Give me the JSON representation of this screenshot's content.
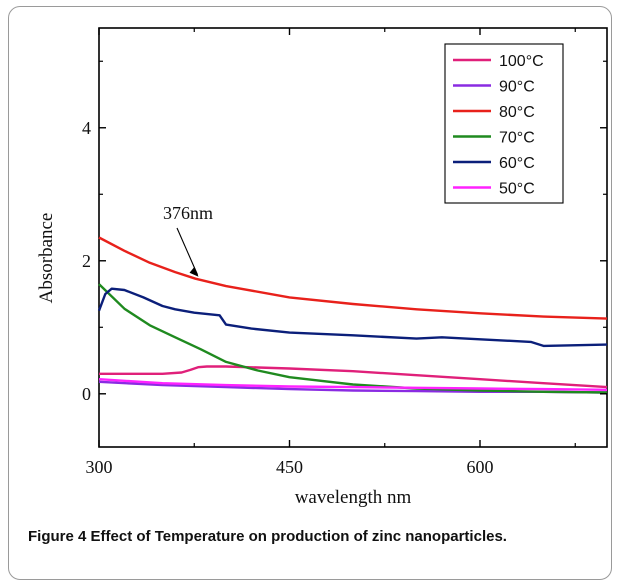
{
  "chart_data": {
    "type": "line",
    "title": "",
    "xlabel": "wavelength nm",
    "ylabel": "Absorbance",
    "xlim": [
      300,
      700
    ],
    "ylim": [
      -0.8,
      5.5
    ],
    "xticks": [
      300,
      450,
      600
    ],
    "yticks": [
      0,
      2,
      4
    ],
    "grid": false,
    "legend_position": "top-right",
    "annotation": {
      "text": "376nm",
      "x": 376,
      "y": 1.73
    },
    "series": [
      {
        "name": "100°C",
        "color": "#e0207a",
        "x": [
          300,
          350,
          365,
          372,
          378,
          385,
          400,
          450,
          500,
          550,
          600,
          650,
          700
        ],
        "y": [
          0.3,
          0.3,
          0.32,
          0.36,
          0.4,
          0.41,
          0.41,
          0.38,
          0.34,
          0.28,
          0.22,
          0.16,
          0.1
        ]
      },
      {
        "name": "90°C",
        "color": "#8a2be2",
        "x": [
          300,
          350,
          400,
          450,
          500,
          550,
          600,
          650,
          700
        ],
        "y": [
          0.18,
          0.13,
          0.1,
          0.07,
          0.05,
          0.04,
          0.03,
          0.03,
          0.02
        ]
      },
      {
        "name": "80°C",
        "color": "#e8211b",
        "x": [
          300,
          320,
          340,
          360,
          376,
          400,
          450,
          500,
          550,
          600,
          650,
          700
        ],
        "y": [
          2.35,
          2.15,
          1.97,
          1.83,
          1.73,
          1.62,
          1.45,
          1.35,
          1.27,
          1.21,
          1.16,
          1.13
        ]
      },
      {
        "name": "70°C",
        "color": "#1f8a1f",
        "x": [
          300,
          320,
          340,
          360,
          380,
          400,
          425,
          450,
          500,
          550,
          600,
          650,
          700
        ],
        "y": [
          1.65,
          1.28,
          1.03,
          0.85,
          0.67,
          0.48,
          0.35,
          0.25,
          0.14,
          0.08,
          0.05,
          0.03,
          0.02
        ]
      },
      {
        "name": "60°C",
        "color": "#0b1f7a",
        "x": [
          300,
          305,
          310,
          320,
          335,
          350,
          360,
          375,
          395,
          400,
          420,
          450,
          500,
          550,
          570,
          600,
          640,
          650,
          700
        ],
        "y": [
          1.25,
          1.5,
          1.58,
          1.56,
          1.45,
          1.32,
          1.27,
          1.22,
          1.18,
          1.04,
          0.98,
          0.92,
          0.88,
          0.83,
          0.85,
          0.82,
          0.78,
          0.72,
          0.74
        ]
      },
      {
        "name": "50°C",
        "color": "#ff22ff",
        "x": [
          300,
          350,
          400,
          450,
          500,
          550,
          600,
          650,
          700
        ],
        "y": [
          0.22,
          0.16,
          0.13,
          0.11,
          0.1,
          0.09,
          0.08,
          0.07,
          0.06
        ]
      }
    ]
  },
  "caption": {
    "label": "Figure 4",
    "text": "Effect of Temperature on production of zinc nanoparticles."
  }
}
